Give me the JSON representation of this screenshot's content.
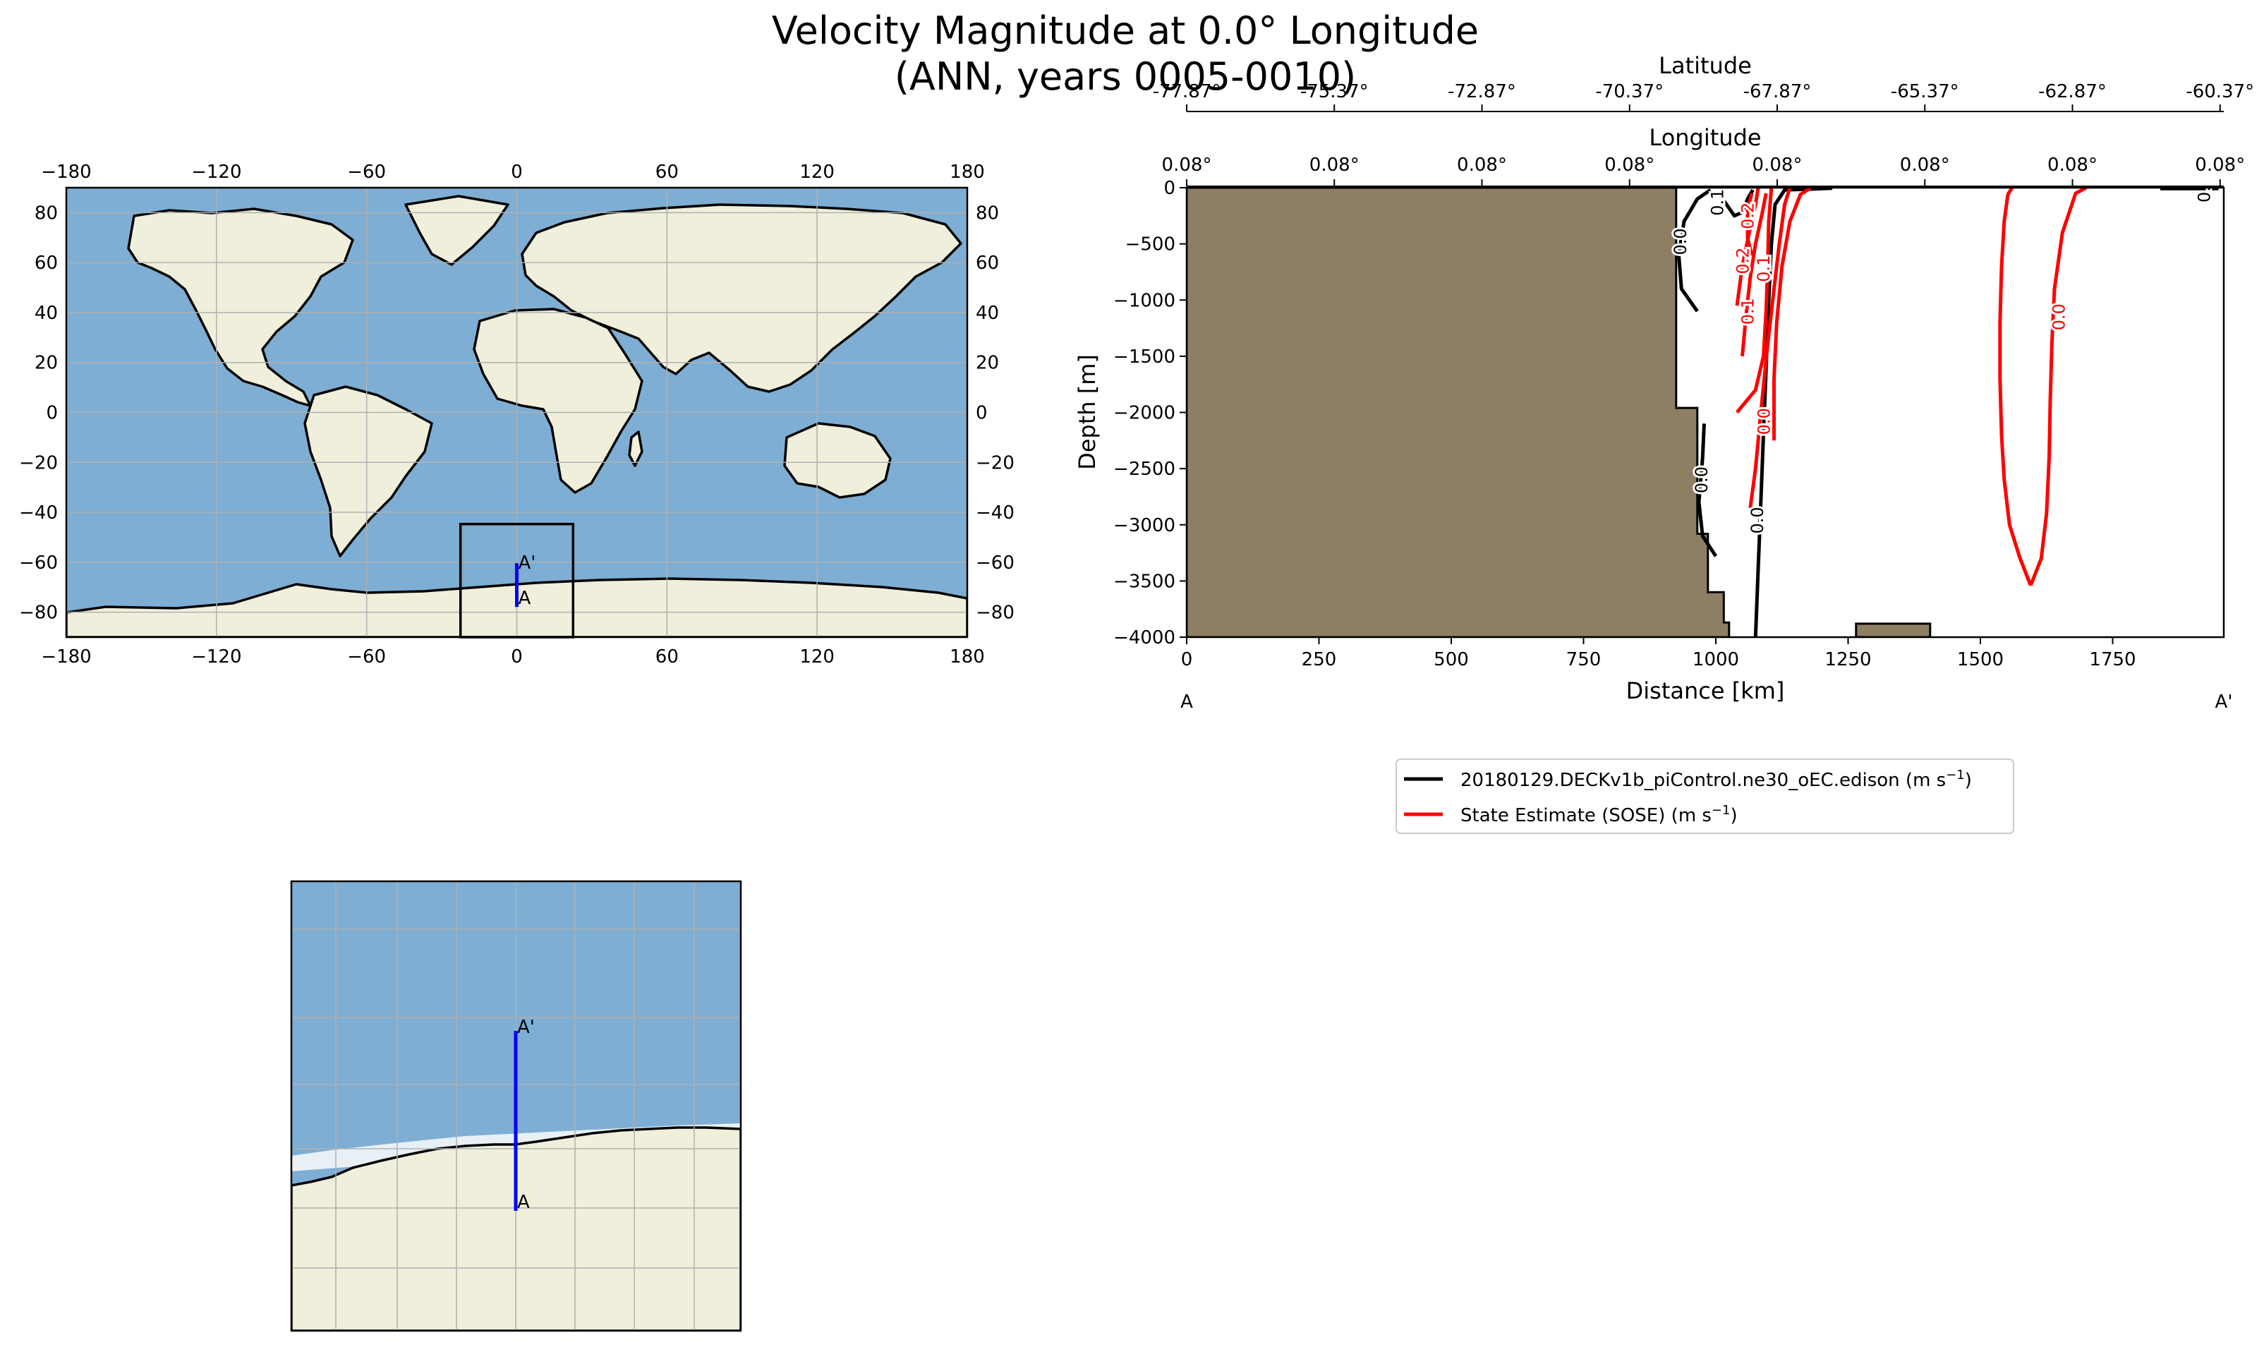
{
  "figure": {
    "title_line1": "Velocity Magnitude at 0.0° Longitude",
    "title_line2": "(ANN, years 0005-0010)"
  },
  "colors": {
    "ocean": "#7eaed4",
    "land": "#efefdc",
    "bathymetry_fill": "#8e7f64",
    "model_contour": "#000000",
    "obs_contour": "#ff0000",
    "transect_line": "#0000ff",
    "grid": "#b0b0b0"
  },
  "world_map": {
    "projection": "PlateCarree",
    "lon_ticks": [
      "−180",
      "−120",
      "−60",
      "0",
      "60",
      "120",
      "180"
    ],
    "lat_ticks": [
      "80",
      "60",
      "40",
      "20",
      "0",
      "−20",
      "−40",
      "−60",
      "−80"
    ],
    "inset_box": {
      "lon_min": -22.5,
      "lon_max": 22.5,
      "lat_min": -90,
      "lat_max": -44.7
    },
    "transect": {
      "lon": 0.0,
      "lat_start": -77.87,
      "lat_end": -60.37
    },
    "label_start": "A",
    "label_end": "A'"
  },
  "zoom_map": {
    "label_start": "A",
    "label_end": "A'"
  },
  "chart_data": {
    "type": "contour",
    "xlabel": "Distance [km]",
    "ylabel": "Depth [m]",
    "xlim": [
      0,
      1960
    ],
    "ylim": [
      -4000,
      0
    ],
    "x_ticks": [
      "0",
      "250",
      "500",
      "750",
      "1000",
      "1250",
      "1500",
      "1750"
    ],
    "x_tick_values": [
      0,
      250,
      500,
      750,
      1000,
      1250,
      1500,
      1750
    ],
    "y_ticks": [
      "0",
      "−500",
      "−1000",
      "−1500",
      "−2000",
      "−2500",
      "−3000",
      "−3500",
      "−4000"
    ],
    "y_tick_values": [
      0,
      -500,
      -1000,
      -1500,
      -2000,
      -2500,
      -3000,
      -3500,
      -4000
    ],
    "latitude_axis": {
      "label": "Latitude",
      "ticks": [
        "-77.87°",
        "-75.37°",
        "-72.87°",
        "-70.37°",
        "-67.87°",
        "-65.37°",
        "-62.87°",
        "-60.37°"
      ]
    },
    "longitude_axis": {
      "label": "Longitude",
      "ticks": [
        "0.08°",
        "0.08°",
        "0.08°",
        "0.08°",
        "0.08°",
        "0.08°",
        "0.08°",
        "0.08°"
      ]
    },
    "secondary_tick_positions_km": [
      0,
      279,
      558,
      837,
      1116,
      1395,
      1674,
      1953
    ],
    "start_label": "A",
    "end_label": "A'",
    "bathymetry": [
      [
        0,
        0
      ],
      [
        925,
        0
      ],
      [
        925,
        -1960
      ],
      [
        965,
        -1960
      ],
      [
        965,
        -3080
      ],
      [
        985,
        -3080
      ],
      [
        985,
        -3600
      ],
      [
        1015,
        -3600
      ],
      [
        1015,
        -3870
      ],
      [
        1025,
        -3870
      ],
      [
        1025,
        -4000
      ],
      [
        0,
        -4000
      ]
    ],
    "seamount": [
      [
        1265,
        -4000
      ],
      [
        1265,
        -3880
      ],
      [
        1405,
        -3880
      ],
      [
        1405,
        -4000
      ]
    ],
    "series": [
      {
        "name": "20180129.DECKv1b_piControl.ne30_oEC.edison",
        "units": "m s",
        "units_exp": "−1",
        "color": "#000000",
        "contours": [
          {
            "level": "0.0",
            "points": [
              [
                1075,
                -4000
              ],
              [
                1080,
                -3400
              ],
              [
                1085,
                -2800
              ],
              [
                1090,
                -2200
              ],
              [
                1095,
                -1600
              ],
              [
                1100,
                -1000
              ],
              [
                1105,
                -500
              ],
              [
                1112,
                -150
              ],
              [
                1130,
                -20
              ],
              [
                1220,
                -5
              ]
            ]
          },
          {
            "level": "0.0",
            "points": [
              [
                965,
                -1100
              ],
              [
                935,
                -900
              ],
              [
                930,
                -600
              ],
              [
                940,
                -300
              ],
              [
                965,
                -100
              ],
              [
                990,
                -20
              ]
            ]
          },
          {
            "level": "0.1",
            "points": [
              [
                1010,
                -80
              ],
              [
                1035,
                -250
              ],
              [
                1050,
                -220
              ],
              [
                1060,
                -100
              ],
              [
                1070,
                -20
              ]
            ]
          },
          {
            "level": "0.0",
            "points": [
              [
                1000,
                -3280
              ],
              [
                975,
                -3100
              ],
              [
                968,
                -2800
              ],
              [
                975,
                -2400
              ],
              [
                978,
                -2100
              ]
            ]
          },
          {
            "level": "0.0",
            "points": [
              [
                1840,
                -8
              ],
              [
                1950,
                -8
              ]
            ]
          }
        ],
        "labels": [
          {
            "text": "0.0",
            "x": 935,
            "y": -480
          },
          {
            "text": "0.0",
            "x": 975,
            "y": -2600
          },
          {
            "text": "0.0",
            "x": 1080,
            "y": -2960
          },
          {
            "text": "0.1",
            "x": 1005,
            "y": -130
          },
          {
            "text": "0.0",
            "x": 1925,
            "y": -12
          }
        ]
      },
      {
        "name": "State Estimate (SOSE)",
        "units": "m s",
        "units_exp": "−1",
        "color": "#ff0000",
        "contours": [
          {
            "level": "0.0",
            "points": [
              [
                1595,
                -3540
              ],
              [
                1615,
                -3300
              ],
              [
                1625,
                -2900
              ],
              [
                1630,
                -2400
              ],
              [
                1632,
                -1900
              ],
              [
                1635,
                -1400
              ],
              [
                1640,
                -900
              ],
              [
                1655,
                -400
              ],
              [
                1680,
                -50
              ],
              [
                1700,
                0
              ]
            ]
          },
          {
            "level": "0.0",
            "points": [
              [
                1595,
                -3540
              ],
              [
                1575,
                -3300
              ],
              [
                1555,
                -3000
              ],
              [
                1545,
                -2600
              ],
              [
                1540,
                -2200
              ],
              [
                1537,
                -1700
              ],
              [
                1537,
                -1200
              ],
              [
                1540,
                -700
              ],
              [
                1545,
                -300
              ],
              [
                1552,
                -60
              ],
              [
                1560,
                0
              ]
            ]
          },
          {
            "level": "0.0",
            "points": [
              [
                1110,
                -2250
              ],
              [
                1110,
                -1700
              ],
              [
                1115,
                -1200
              ],
              [
                1125,
                -700
              ],
              [
                1140,
                -300
              ],
              [
                1160,
                -60
              ],
              [
                1180,
                0
              ]
            ]
          },
          {
            "level": "0.0",
            "points": [
              [
                1065,
                -2850
              ],
              [
                1075,
                -2500
              ],
              [
                1085,
                -2000
              ],
              [
                1098,
                -1400
              ],
              [
                1110,
                -900
              ],
              [
                1120,
                -500
              ],
              [
                1130,
                -150
              ],
              [
                1140,
                0
              ]
            ]
          },
          {
            "level": "0.1",
            "points": [
              [
                1050,
                -1500
              ],
              [
                1058,
                -1100
              ],
              [
                1065,
                -800
              ],
              [
                1075,
                -500
              ],
              [
                1088,
                -220
              ],
              [
                1095,
                -50
              ]
            ]
          },
          {
            "level": "0.1",
            "points": [
              [
                1040,
                -2000
              ],
              [
                1075,
                -1800
              ],
              [
                1090,
                -1500
              ],
              [
                1095,
                -1100
              ],
              [
                1098,
                -700
              ],
              [
                1100,
                -300
              ],
              [
                1105,
                0
              ]
            ]
          },
          {
            "level": "0.2",
            "points": [
              [
                1040,
                -1050
              ],
              [
                1050,
                -700
              ],
              [
                1063,
                -400
              ],
              [
                1075,
                -150
              ],
              [
                1080,
                0
              ]
            ]
          },
          {
            "level": "0.2",
            "points": [
              [
                1068,
                -50
              ],
              [
                1060,
                -200
              ],
              [
                1060,
                -450
              ],
              [
                1068,
                -600
              ]
            ]
          }
        ],
        "labels": [
          {
            "text": "0.0",
            "x": 1650,
            "y": -1150
          },
          {
            "text": "0.0",
            "x": 1093,
            "y": -2080
          },
          {
            "text": "0.1",
            "x": 1062,
            "y": -1100
          },
          {
            "text": "0.1",
            "x": 1092,
            "y": -720
          },
          {
            "text": "0.2",
            "x": 1053,
            "y": -650
          },
          {
            "text": "0.2",
            "x": 1062,
            "y": -250
          }
        ]
      }
    ],
    "legend_position": "below-right"
  }
}
